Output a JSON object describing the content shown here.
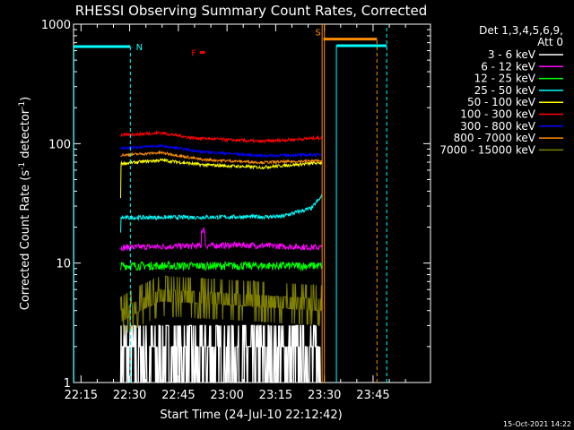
{
  "chart_data": {
    "type": "line",
    "title": "RHESSI Observing Summary Count Rates, Corrected",
    "xlabel": "Start Time (24-Jul-10 22:12:42)",
    "ylabel_main": "Corrected Count Rate (s",
    "ylabel_sup1": "-1",
    "ylabel_mid": " detector",
    "ylabel_sup2": "-1",
    "ylabel_end": ")",
    "yscale": "log",
    "ylim": [
      1,
      1000
    ],
    "xlim_min": [
      0,
      110
    ],
    "x_ticks": [
      {
        "min": 2.3,
        "label": "22:15"
      },
      {
        "min": 17.3,
        "label": "22:30"
      },
      {
        "min": 32.3,
        "label": "22:45"
      },
      {
        "min": 47.3,
        "label": "23:00"
      },
      {
        "min": 62.3,
        "label": "23:15"
      },
      {
        "min": 77.3,
        "label": "23:30"
      },
      {
        "min": 92.3,
        "label": "23:45"
      }
    ],
    "y_ticks": [
      {
        "value": 1,
        "label": "1"
      },
      {
        "value": 10,
        "label": "10"
      },
      {
        "value": 100,
        "label": "100"
      },
      {
        "value": 1000,
        "label": "1000"
      }
    ],
    "legend_header": [
      "Det 1,3,4,5,6,9,",
      "Att 0"
    ],
    "legend_position": "right",
    "data_start_min": 14.5,
    "data_end_min": 76.5,
    "series": [
      {
        "name": "3 - 6 keV",
        "color": "#ffffff",
        "level": 2.0,
        "noise": 0.3,
        "trend": [
          [
            0,
            1
          ],
          [
            1,
            1
          ]
        ]
      },
      {
        "name": "6 - 12 keV",
        "color": "#ff00ff",
        "level": 13.5,
        "noise": 0.06,
        "trend": [
          [
            0,
            1
          ],
          [
            0.6,
            1.05
          ],
          [
            1,
            1
          ]
        ]
      },
      {
        "name": "12 - 25 keV",
        "color": "#00ff00",
        "level": 9.5,
        "noise": 0.08,
        "trend": [
          [
            0,
            1
          ],
          [
            1,
            1
          ]
        ]
      },
      {
        "name": "25 - 50 keV",
        "color": "#00ffff",
        "level": 24,
        "noise": 0.04,
        "trend": [
          [
            0,
            1
          ],
          [
            0.8,
            1.02
          ],
          [
            0.95,
            1.2
          ],
          [
            1,
            1.5
          ]
        ]
      },
      {
        "name": "50 - 100 keV",
        "color": "#ffff00",
        "level": 68,
        "noise": 0.03,
        "trend": [
          [
            0,
            1
          ],
          [
            0.2,
            1.07
          ],
          [
            0.4,
            0.98
          ],
          [
            0.7,
            0.93
          ],
          [
            1,
            1.02
          ]
        ]
      },
      {
        "name": "100 - 300 keV",
        "color": "#ff0000",
        "level": 112,
        "noise": 0.03,
        "trend": [
          [
            0,
            1.05
          ],
          [
            0.2,
            1.1
          ],
          [
            0.35,
            1.0
          ],
          [
            0.7,
            0.93
          ],
          [
            1,
            1.0
          ]
        ]
      },
      {
        "name": "300 - 800 keV",
        "color": "#0000ff",
        "level": 92,
        "noise": 0.025,
        "trend": [
          [
            0,
            1.0
          ],
          [
            0.2,
            1.04
          ],
          [
            0.4,
            0.93
          ],
          [
            0.7,
            0.86
          ],
          [
            1,
            0.88
          ]
        ]
      },
      {
        "name": "800 - 7000 keV",
        "color": "#ff8c00",
        "level": 80,
        "noise": 0.025,
        "trend": [
          [
            0,
            1.0
          ],
          [
            0.2,
            1.05
          ],
          [
            0.4,
            0.92
          ],
          [
            0.7,
            0.87
          ],
          [
            1,
            0.9
          ]
        ]
      },
      {
        "name": "7000 - 15000 keV",
        "color": "#808000",
        "level": 4.5,
        "noise": 0.2,
        "trend": [
          [
            0,
            0.8
          ],
          [
            0.2,
            1.2
          ],
          [
            1,
            1
          ]
        ]
      }
    ],
    "saa_bars": [
      {
        "label": "N",
        "from_min": 0,
        "to_min": 17.5,
        "value": 650,
        "color": "#00ffff"
      },
      {
        "label": "S",
        "from_min": 77,
        "to_min": 93.5,
        "value": 750,
        "color": "#ff8c00"
      },
      {
        "label": "",
        "from_min": 81,
        "to_min": 96.5,
        "value": 660,
        "color": "#00ffff"
      }
    ],
    "flare_marker": {
      "label": "F",
      "from_min": 39,
      "to_min": 40.5,
      "value": 580,
      "color": "#ff0000"
    }
  },
  "timestamp": "15-Oct-2021 14:22"
}
